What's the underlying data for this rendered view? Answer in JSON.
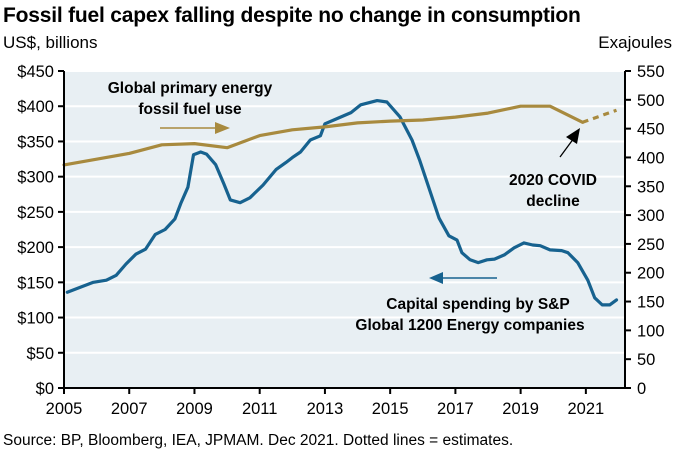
{
  "header": {
    "title": "Fossil fuel capex falling despite no change in consumption",
    "left_unit": "US$, billions",
    "right_unit": "Exajoules"
  },
  "source": "Source: BP, Bloomberg, IEA, JPMAM. Dec 2021. Dotted lines = estimates.",
  "colors": {
    "plot_background": "#e8eff3",
    "gridline": "#ffffff",
    "capex_series": "#17628f",
    "energy_series": "#a88a3e",
    "axis": "#000000"
  },
  "chart_data": {
    "type": "line",
    "title": "Fossil fuel capex falling despite no change in consumption",
    "xlabel": "",
    "ylabel": "US$, billions",
    "y2label": "Exajoules",
    "xlim": [
      2005,
      2022.2
    ],
    "ylim": [
      0,
      450
    ],
    "y2lim": [
      0,
      550
    ],
    "grid": true,
    "x_ticks": [
      "2005",
      "2007",
      "2009",
      "2011",
      "2013",
      "2015",
      "2017",
      "2019",
      "2021"
    ],
    "x_tick_values": [
      2005,
      2007,
      2009,
      2011,
      2013,
      2015,
      2017,
      2019,
      2021
    ],
    "y_ticks": [
      "$0",
      "$50",
      "$100",
      "$150",
      "$200",
      "$250",
      "$300",
      "$350",
      "$400",
      "$450"
    ],
    "y_tick_values": [
      0,
      50,
      100,
      150,
      200,
      250,
      300,
      350,
      400,
      450
    ],
    "y2_ticks": [
      "0",
      "50",
      "100",
      "150",
      "200",
      "250",
      "300",
      "350",
      "400",
      "450",
      "500",
      "550"
    ],
    "y2_tick_values": [
      0,
      50,
      100,
      150,
      200,
      250,
      300,
      350,
      400,
      450,
      500,
      550
    ],
    "series": [
      {
        "name": "Capital spending by S&P Global 1200 Energy companies",
        "axis": "left",
        "style": "solid",
        "x": [
          2005.1,
          2005.5,
          2005.9,
          2006.3,
          2006.6,
          2006.9,
          2007.2,
          2007.5,
          2007.8,
          2008.1,
          2008.4,
          2008.58,
          2008.8,
          2008.97,
          2009.19,
          2009.37,
          2009.65,
          2009.9,
          2010.1,
          2010.4,
          2010.7,
          2011.1,
          2011.5,
          2011.8,
          2012.0,
          2012.25,
          2012.55,
          2012.86,
          2013.0,
          2013.3,
          2013.8,
          2014.1,
          2014.6,
          2014.9,
          2015.3,
          2015.67,
          2015.9,
          2016.16,
          2016.5,
          2016.8,
          2017.05,
          2017.2,
          2017.45,
          2017.7,
          2017.97,
          2018.2,
          2018.5,
          2018.8,
          2019.1,
          2019.37,
          2019.6,
          2019.9,
          2020.26,
          2020.45,
          2020.75,
          2021.06,
          2021.27,
          2021.5,
          2021.73,
          2021.94
        ],
        "values": [
          136,
          143,
          150,
          153,
          160,
          176,
          190,
          197,
          218,
          225,
          240,
          262,
          285,
          331,
          335,
          332,
          317,
          290,
          267,
          263,
          270,
          288,
          310,
          320,
          327,
          335,
          352,
          358,
          375,
          381,
          391,
          402,
          408,
          406,
          385,
          352,
          324,
          288,
          241,
          216,
          210,
          192,
          182,
          178,
          182,
          183,
          189,
          199,
          206,
          203,
          202,
          196,
          195,
          192,
          178,
          153,
          128,
          118,
          118,
          125
        ]
      },
      {
        "name": "Global primary energy fossil fuel use",
        "axis": "right",
        "style": "solid",
        "x": [
          2005,
          2006,
          2007,
          2008,
          2009,
          2010,
          2011,
          2012,
          2013,
          2014,
          2015,
          2016,
          2017,
          2018,
          2019,
          2019.9,
          2020.9
        ],
        "values": [
          387,
          397,
          407,
          422,
          424,
          417,
          438,
          448,
          453,
          460,
          463,
          465,
          470,
          477,
          489,
          489,
          461
        ]
      },
      {
        "name": "Global primary energy fossil fuel use (estimate)",
        "axis": "right",
        "style": "dotted",
        "x": [
          2020.9,
          2021.94
        ],
        "values": [
          461,
          482
        ]
      }
    ],
    "annotations": [
      {
        "text": [
          "Global primary energy",
          "fossil fuel use"
        ],
        "arrow": "right",
        "refers_to_axis": "right"
      },
      {
        "text": [
          "Capital spending by S&P",
          "Global 1200 Energy companies"
        ],
        "arrow": "left",
        "refers_to_axis": "left"
      },
      {
        "text": [
          "2020 COVID",
          "decline"
        ],
        "arrow": "pointing to 2020 dip"
      }
    ]
  }
}
